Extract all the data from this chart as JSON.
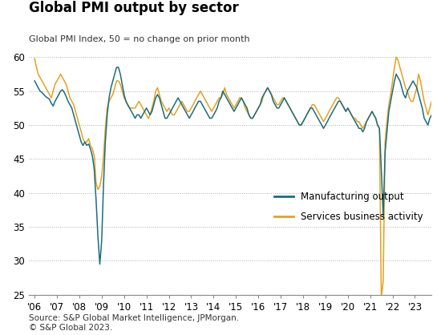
{
  "title": "Global PMI output by sector",
  "subtitle": "Global PMI Index, 50 = no change on prior month",
  "source": "Source: S&P Global Market Intelligence, JPMorgan.\n© S&P Global 2023.",
  "mfg_color": "#1a6e7e",
  "svc_color": "#e8a020",
  "ylim": [
    25,
    62
  ],
  "yticks": [
    25,
    30,
    35,
    40,
    45,
    50,
    55,
    60
  ],
  "legend_labels": [
    "Manufacturing output",
    "Services business activity"
  ],
  "mfg_data": [
    56.5,
    56.0,
    55.5,
    55.0,
    54.8,
    54.5,
    54.2,
    54.0,
    53.8,
    53.2,
    52.8,
    53.5,
    54.0,
    54.5,
    55.0,
    55.2,
    54.8,
    54.2,
    53.5,
    53.0,
    52.5,
    51.5,
    50.5,
    49.5,
    48.5,
    47.5,
    47.0,
    47.5,
    47.0,
    47.2,
    46.5,
    45.5,
    43.5,
    39.0,
    33.5,
    29.5,
    33.0,
    41.5,
    47.5,
    51.5,
    54.0,
    55.5,
    56.5,
    57.5,
    58.5,
    58.5,
    57.5,
    56.0,
    54.5,
    53.5,
    53.0,
    52.5,
    52.0,
    51.5,
    51.0,
    51.5,
    51.5,
    51.0,
    51.5,
    52.0,
    52.5,
    52.0,
    51.5,
    52.0,
    53.0,
    54.0,
    54.5,
    54.0,
    53.0,
    52.0,
    51.0,
    51.0,
    51.5,
    52.0,
    52.5,
    53.0,
    53.5,
    54.0,
    53.5,
    53.0,
    52.5,
    52.0,
    51.5,
    51.0,
    51.5,
    52.0,
    52.5,
    53.0,
    53.5,
    53.5,
    53.0,
    52.5,
    52.0,
    51.5,
    51.0,
    51.0,
    51.5,
    52.0,
    52.5,
    53.5,
    54.0,
    55.0,
    54.5,
    54.0,
    53.5,
    53.0,
    52.5,
    52.0,
    52.5,
    53.0,
    53.5,
    54.0,
    53.5,
    53.0,
    52.5,
    51.5,
    51.0,
    51.0,
    51.5,
    52.0,
    52.5,
    53.0,
    54.0,
    54.5,
    55.0,
    55.5,
    55.0,
    54.5,
    53.5,
    53.0,
    52.5,
    52.5,
    53.0,
    53.5,
    54.0,
    53.5,
    53.0,
    52.5,
    52.0,
    51.5,
    51.0,
    50.5,
    50.0,
    50.0,
    50.5,
    51.0,
    51.5,
    52.0,
    52.5,
    52.5,
    52.0,
    51.5,
    51.0,
    50.5,
    50.0,
    49.5,
    50.0,
    50.5,
    51.0,
    51.5,
    52.0,
    52.5,
    53.0,
    53.5,
    53.5,
    53.0,
    52.5,
    52.0,
    52.5,
    52.0,
    51.5,
    51.0,
    50.5,
    50.0,
    49.5,
    49.5,
    49.0,
    49.5,
    50.5,
    51.0,
    51.5,
    52.0,
    51.5,
    51.0,
    50.0,
    49.5,
    43.5,
    36.5,
    46.0,
    49.0,
    52.0,
    53.5,
    55.0,
    56.5,
    57.5,
    57.0,
    56.5,
    55.5,
    54.5,
    54.0,
    55.0,
    55.5,
    56.0,
    56.5,
    56.0,
    55.5,
    54.5,
    53.5,
    52.5,
    51.0,
    50.5,
    50.0,
    51.0,
    51.5,
    52.0,
    52.5,
    53.5,
    54.0,
    54.5,
    54.0,
    53.5,
    52.5,
    52.0,
    51.5,
    51.0,
    51.0,
    50.5,
    50.0,
    49.5,
    49.0,
    48.5,
    48.5,
    49.5,
    50.5,
    51.0,
    51.5,
    51.5,
    51.0,
    51.0,
    51.5
  ],
  "svc_data": [
    59.8,
    58.5,
    57.5,
    57.0,
    56.5,
    56.0,
    55.5,
    55.0,
    54.5,
    54.0,
    55.0,
    56.0,
    56.5,
    57.0,
    57.5,
    57.0,
    56.5,
    56.0,
    55.0,
    54.0,
    53.5,
    53.0,
    52.0,
    51.0,
    50.0,
    49.0,
    48.0,
    47.5,
    47.5,
    48.0,
    47.0,
    46.5,
    45.5,
    41.5,
    40.5,
    41.0,
    42.5,
    45.5,
    49.5,
    52.5,
    53.5,
    54.0,
    54.5,
    55.5,
    56.5,
    56.5,
    56.0,
    55.0,
    54.0,
    53.5,
    53.0,
    52.5,
    52.5,
    52.5,
    52.5,
    53.0,
    53.5,
    53.0,
    52.5,
    52.0,
    51.5,
    51.0,
    51.5,
    52.5,
    53.5,
    55.0,
    55.5,
    54.5,
    53.5,
    53.0,
    52.5,
    52.0,
    52.5,
    52.0,
    51.5,
    51.5,
    52.0,
    52.5,
    53.0,
    53.5,
    53.0,
    52.5,
    52.0,
    52.0,
    52.5,
    53.0,
    53.5,
    54.0,
    54.5,
    55.0,
    54.5,
    54.0,
    53.5,
    53.0,
    52.5,
    52.0,
    52.5,
    53.0,
    53.5,
    54.0,
    54.0,
    54.5,
    55.5,
    54.5,
    54.0,
    53.5,
    53.0,
    52.5,
    53.0,
    53.5,
    54.0,
    54.0,
    53.5,
    52.5,
    52.0,
    51.5,
    51.0,
    51.0,
    51.5,
    52.0,
    52.5,
    53.0,
    53.5,
    54.5,
    55.0,
    55.5,
    55.0,
    54.5,
    54.0,
    53.5,
    53.0,
    53.0,
    53.5,
    54.0,
    54.0,
    53.5,
    53.0,
    52.5,
    52.0,
    51.5,
    51.0,
    50.5,
    50.0,
    50.0,
    50.5,
    51.0,
    51.5,
    52.0,
    52.5,
    53.0,
    53.0,
    52.5,
    52.0,
    51.5,
    51.0,
    50.5,
    51.0,
    51.5,
    52.0,
    52.5,
    53.0,
    53.5,
    54.0,
    54.0,
    53.5,
    53.0,
    52.5,
    52.0,
    52.5,
    52.0,
    51.5,
    51.0,
    51.0,
    50.5,
    50.5,
    50.0,
    49.5,
    50.0,
    50.5,
    51.0,
    51.5,
    52.0,
    51.5,
    51.0,
    50.0,
    49.5,
    24.5,
    27.0,
    47.5,
    50.5,
    53.0,
    54.5,
    56.5,
    58.5,
    60.0,
    59.5,
    58.5,
    57.5,
    56.5,
    55.5,
    55.0,
    54.0,
    53.5,
    53.5,
    54.5,
    55.5,
    57.5,
    56.5,
    55.0,
    53.5,
    52.5,
    51.5,
    52.5,
    53.5,
    54.5,
    55.0,
    56.0,
    56.5,
    57.0,
    56.0,
    54.5,
    53.5,
    53.0,
    52.5,
    52.0,
    51.5,
    51.0,
    50.5,
    49.5,
    48.5,
    48.0,
    48.5,
    50.0,
    51.0,
    52.0,
    52.5,
    53.5,
    54.5,
    55.0,
    55.5
  ]
}
